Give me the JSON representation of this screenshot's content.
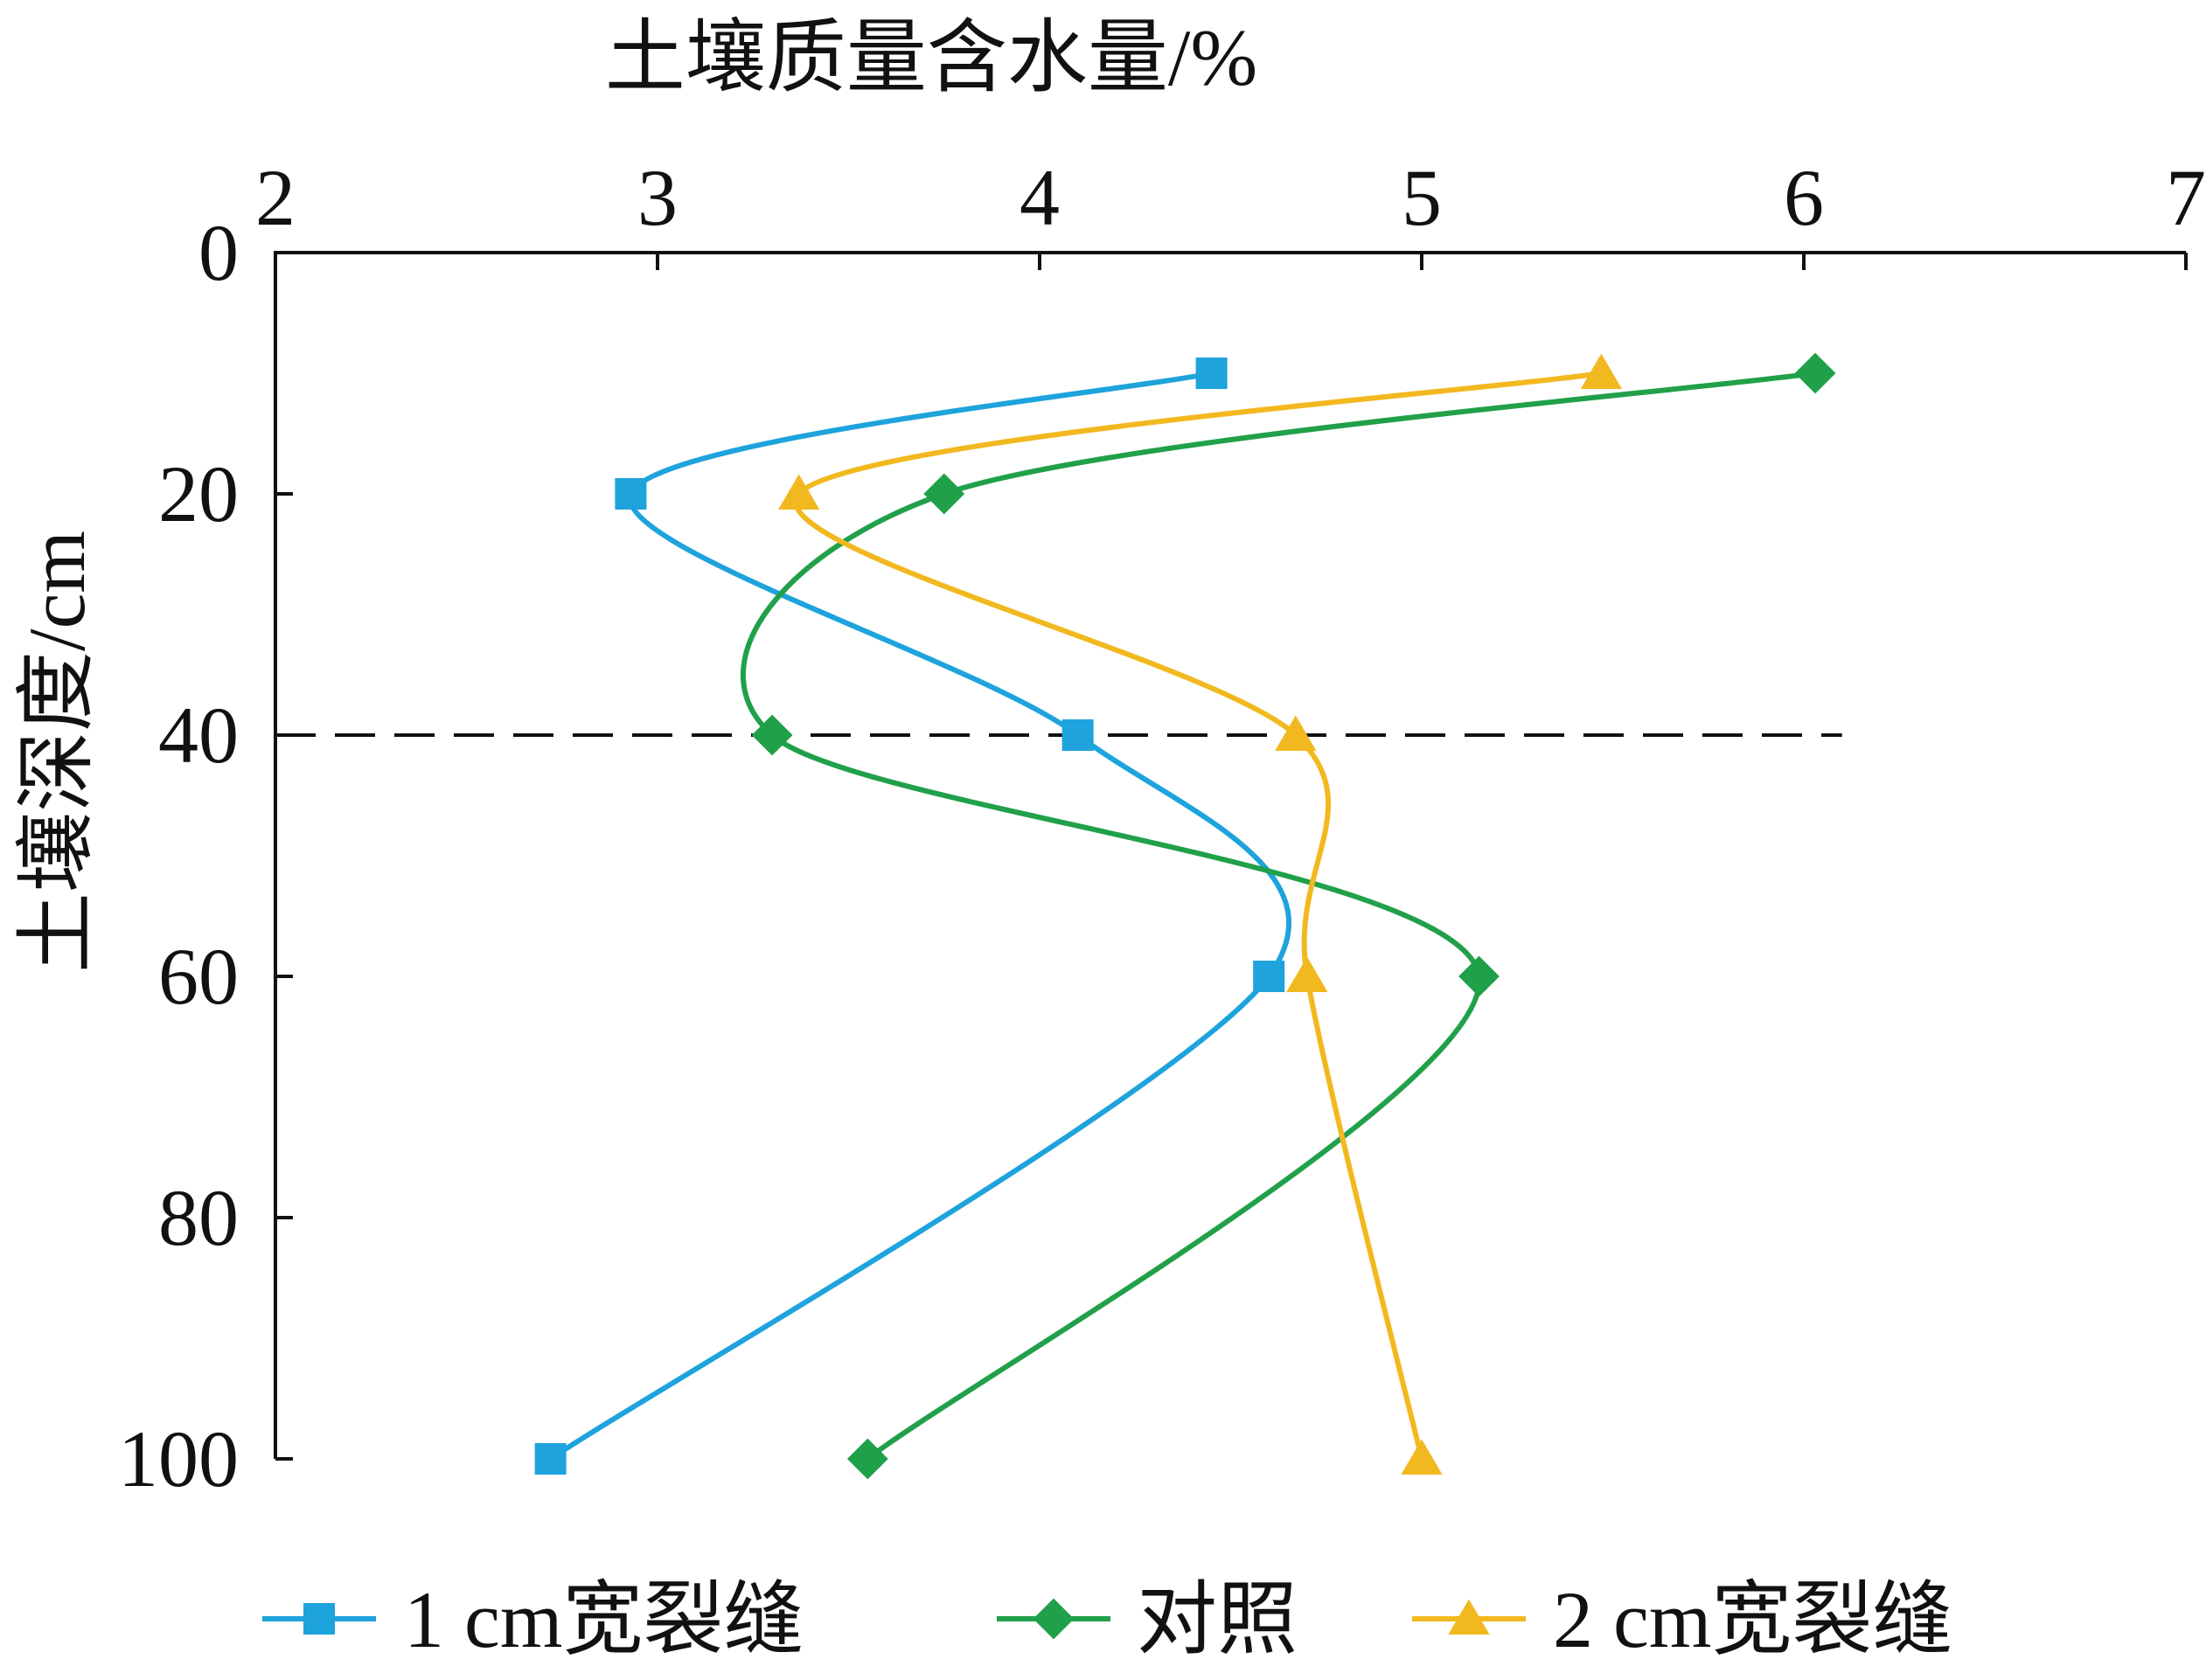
{
  "chart_data": {
    "type": "line",
    "title": "",
    "xlabel": "土壤质量含水量/%",
    "ylabel": "土壤深度/cm",
    "xlim": [
      2,
      7
    ],
    "ylim": [
      0,
      100
    ],
    "y_inverted": true,
    "x_axis_position": "top",
    "x_ticks": [
      "2",
      "3",
      "4",
      "5",
      "6",
      "7"
    ],
    "y_ticks": [
      "0",
      "20",
      "40",
      "60",
      "80",
      "100"
    ],
    "reference_line": {
      "y": 40,
      "x_range": [
        2,
        6.1
      ],
      "style": "dashed"
    },
    "legend_position": "bottom",
    "series": [
      {
        "name": "1 cm宽裂缝",
        "color": "#1ea3dc",
        "marker": "square",
        "points": [
          [
            4.45,
            10
          ],
          [
            2.93,
            20
          ],
          [
            4.1,
            40
          ],
          [
            4.6,
            60
          ],
          [
            2.72,
            100
          ]
        ]
      },
      {
        "name": "对照",
        "color": "#21a04a",
        "marker": "diamond",
        "points": [
          [
            6.03,
            10
          ],
          [
            3.75,
            20
          ],
          [
            3.3,
            40
          ],
          [
            5.15,
            60
          ],
          [
            3.55,
            100
          ]
        ]
      },
      {
        "name": "2 cm宽裂缝",
        "color": "#f2b81f",
        "marker": "triangle",
        "points": [
          [
            5.47,
            10
          ],
          [
            3.37,
            20
          ],
          [
            4.67,
            40
          ],
          [
            4.7,
            60
          ],
          [
            5.0,
            100
          ]
        ]
      }
    ]
  }
}
